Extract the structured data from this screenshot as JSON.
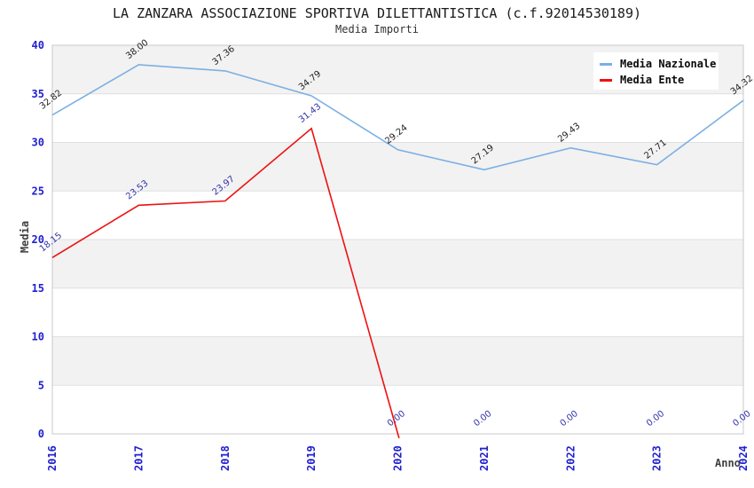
{
  "chart": {
    "title": "LA ZANZARA ASSOCIAZIONE SPORTIVA DILETTANTISTICA (c.f.92014530189)",
    "subtitle": "Media Importi"
  },
  "chart_data": {
    "type": "line",
    "title": "LA ZANZARA ASSOCIAZIONE SPORTIVA DILETTANTISTICA (c.f.92014530189)",
    "subtitle": "Media Importi",
    "xlabel": "Anno",
    "ylabel": "Media",
    "x": [
      "2016",
      "2017",
      "2018",
      "2019",
      "2020",
      "2021",
      "2022",
      "2023",
      "2024"
    ],
    "ylim": [
      0,
      40
    ],
    "y_ticks": [
      0,
      5,
      10,
      15,
      20,
      25,
      30,
      35,
      40
    ],
    "grid": "horizontal gridlines every 5 with alternating shaded bands",
    "legend_position": "top-right",
    "series": [
      {
        "name": "Media Nazionale",
        "color": "#7cb0e2",
        "label_color": "#1f1f1f",
        "values": [
          32.82,
          38.0,
          37.36,
          34.79,
          29.24,
          27.19,
          29.43,
          27.71,
          34.32
        ]
      },
      {
        "name": "Media Ente",
        "color": "#ee1111",
        "label_color": "#3333aa",
        "values": [
          18.15,
          23.53,
          23.97,
          31.43,
          0.0,
          0.0,
          0.0,
          0.0,
          0.0
        ],
        "line_end_index": 4
      }
    ],
    "style": {
      "tick_label_color": "#2020cf",
      "axis_title_color": "#404040",
      "band_color": "#f2f2f2",
      "grid_color": "#e0e0e0",
      "axis_color": "#c8c8c8",
      "title_color": "#1a1a1a",
      "legend_bg": "#ffffff"
    }
  }
}
